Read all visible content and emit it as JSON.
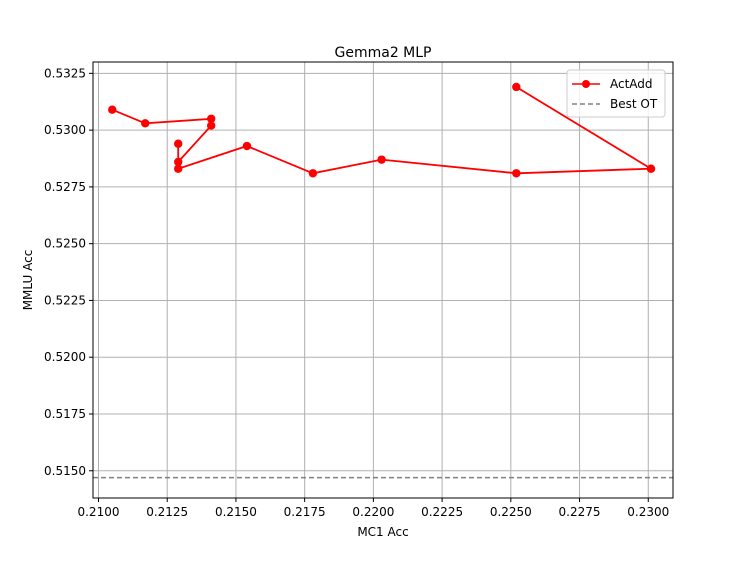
{
  "chart_data": {
    "type": "line",
    "title": "Gemma2 MLP",
    "xlabel": "MC1 Acc",
    "ylabel": "MMLU Acc",
    "xlim": [
      0.2098,
      0.2309
    ],
    "ylim": [
      0.5138,
      0.533
    ],
    "xticks": [
      0.21,
      0.2125,
      0.215,
      0.2175,
      0.22,
      0.2225,
      0.225,
      0.2275,
      0.23
    ],
    "xtick_labels": [
      "0.2100",
      "0.2125",
      "0.2150",
      "0.2175",
      "0.2200",
      "0.2225",
      "0.2250",
      "0.2275",
      "0.2300"
    ],
    "yticks": [
      0.515,
      0.5175,
      0.52,
      0.5225,
      0.525,
      0.5275,
      0.53,
      0.5325
    ],
    "ytick_labels": [
      "0.5150",
      "0.5175",
      "0.5200",
      "0.5225",
      "0.5250",
      "0.5275",
      "0.5300",
      "0.5325"
    ],
    "grid": true,
    "legend_position": "top-right",
    "series": [
      {
        "name": "ActAdd",
        "color": "#ff0000",
        "marker": "circle",
        "points": [
          {
            "x": 0.2105,
            "y": 0.5309
          },
          {
            "x": 0.2117,
            "y": 0.5303
          },
          {
            "x": 0.2141,
            "y": 0.5305
          },
          {
            "x": 0.2141,
            "y": 0.5302
          },
          {
            "x": 0.2129,
            "y": 0.5286
          },
          {
            "x": 0.2129,
            "y": 0.5294
          },
          {
            "x": 0.2129,
            "y": 0.5283
          },
          {
            "x": 0.2154,
            "y": 0.5293
          },
          {
            "x": 0.2178,
            "y": 0.5281
          },
          {
            "x": 0.2203,
            "y": 0.5287
          },
          {
            "x": 0.2252,
            "y": 0.5281
          },
          {
            "x": 0.2301,
            "y": 0.5283
          },
          {
            "x": 0.2252,
            "y": 0.5319
          }
        ]
      }
    ],
    "reference_lines": [
      {
        "name": "Best OT",
        "orientation": "horizontal",
        "y": 0.5147,
        "color": "#808080",
        "style": "dashed"
      }
    ]
  }
}
